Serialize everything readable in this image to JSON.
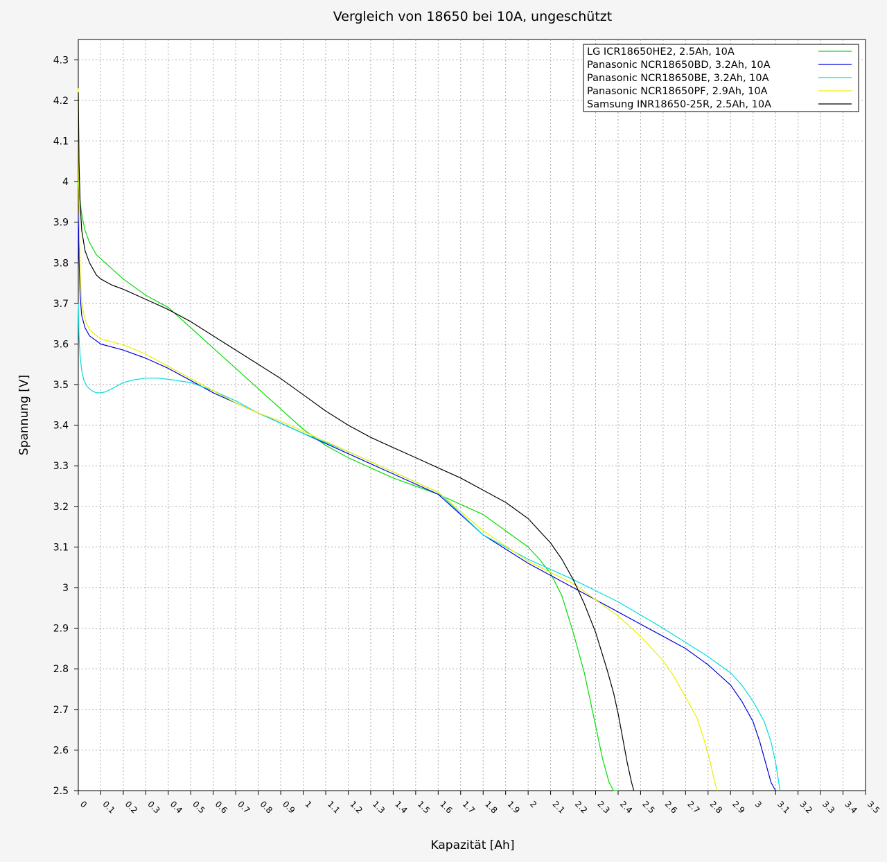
{
  "chart_data": {
    "type": "line",
    "title": "Vergleich von 18650 bei 10A, ungeschützt",
    "xlabel": "Kapazität [Ah]",
    "ylabel": "Spannung [V]",
    "xlim": [
      0,
      3.5
    ],
    "ylim": [
      2.5,
      4.35
    ],
    "grid": true,
    "legend_position": "top-right",
    "x_ticks": [
      "0",
      "0.1",
      "0.2",
      "0.3",
      "0.4",
      "0.5",
      "0.6",
      "0.7",
      "0.8",
      "0.9",
      "1",
      "1.1",
      "1.2",
      "1.3",
      "1.4",
      "1.5",
      "1.6",
      "1.7",
      "1.8",
      "1.9",
      "2",
      "2.1",
      "2.2",
      "2.3",
      "2.4",
      "2.5",
      "2.6",
      "2.7",
      "2.8",
      "2.9",
      "3",
      "3.1",
      "3.2",
      "3.3",
      "3.4",
      "3.5"
    ],
    "y_ticks": [
      "2.5",
      "2.6",
      "2.7",
      "2.8",
      "2.9",
      "3",
      "3.1",
      "3.2",
      "3.3",
      "3.4",
      "3.5",
      "3.6",
      "3.7",
      "3.8",
      "3.9",
      "4",
      "4.1",
      "4.2",
      "4.3"
    ],
    "series": [
      {
        "name": "LG ICR18650HE2, 2.5Ah, 10A",
        "color": "#00dd00",
        "x": [
          0,
          0.003,
          0.008,
          0.015,
          0.03,
          0.05,
          0.08,
          0.1,
          0.15,
          0.2,
          0.3,
          0.4,
          0.5,
          0.6,
          0.7,
          0.8,
          0.9,
          1.0,
          1.1,
          1.2,
          1.3,
          1.4,
          1.5,
          1.6,
          1.7,
          1.8,
          1.9,
          2.0,
          2.05,
          2.1,
          2.15,
          2.2,
          2.25,
          2.3,
          2.33,
          2.36,
          2.38,
          2.4
        ],
        "y": [
          4.0,
          3.98,
          3.95,
          3.92,
          3.88,
          3.85,
          3.82,
          3.81,
          3.785,
          3.76,
          3.72,
          3.69,
          3.64,
          3.59,
          3.54,
          3.49,
          3.44,
          3.39,
          3.35,
          3.32,
          3.295,
          3.27,
          3.25,
          3.23,
          3.205,
          3.18,
          3.14,
          3.1,
          3.07,
          3.035,
          2.98,
          2.89,
          2.79,
          2.66,
          2.58,
          2.52,
          2.5,
          2.5
        ]
      },
      {
        "name": "Panasonic NCR18650BD, 3.2Ah, 10A",
        "color": "#0000dd",
        "x": [
          0,
          0.003,
          0.008,
          0.015,
          0.03,
          0.05,
          0.1,
          0.2,
          0.3,
          0.4,
          0.5,
          0.6,
          0.7,
          0.8,
          0.9,
          1.0,
          1.2,
          1.4,
          1.6,
          1.8,
          2.0,
          2.2,
          2.4,
          2.6,
          2.7,
          2.8,
          2.9,
          2.95,
          3.0,
          3.03,
          3.06,
          3.08,
          3.1
        ],
        "y": [
          3.92,
          3.82,
          3.72,
          3.67,
          3.64,
          3.62,
          3.6,
          3.585,
          3.565,
          3.54,
          3.51,
          3.48,
          3.455,
          3.43,
          3.405,
          3.38,
          3.33,
          3.28,
          3.23,
          3.13,
          3.06,
          3.0,
          2.94,
          2.88,
          2.85,
          2.81,
          2.76,
          2.72,
          2.67,
          2.62,
          2.56,
          2.52,
          2.5
        ]
      },
      {
        "name": "Panasonic NCR18650BE, 3.2Ah, 10A",
        "color": "#00dddd",
        "x": [
          0,
          0.003,
          0.008,
          0.015,
          0.025,
          0.04,
          0.06,
          0.08,
          0.1,
          0.12,
          0.15,
          0.2,
          0.25,
          0.3,
          0.35,
          0.4,
          0.5,
          0.6,
          0.7,
          0.8,
          0.9,
          1.0,
          1.2,
          1.4,
          1.6,
          1.8,
          2.0,
          2.2,
          2.4,
          2.6,
          2.8,
          2.9,
          2.95,
          3.0,
          3.05,
          3.08,
          3.1,
          3.12
        ],
        "y": [
          3.7,
          3.62,
          3.57,
          3.535,
          3.51,
          3.495,
          3.485,
          3.48,
          3.48,
          3.482,
          3.49,
          3.505,
          3.512,
          3.516,
          3.516,
          3.513,
          3.505,
          3.485,
          3.46,
          3.43,
          3.405,
          3.38,
          3.335,
          3.285,
          3.235,
          3.13,
          3.07,
          3.02,
          2.965,
          2.9,
          2.83,
          2.79,
          2.76,
          2.72,
          2.67,
          2.62,
          2.57,
          2.5
        ]
      },
      {
        "name": "Panasonic NCR18650PF, 2.9Ah, 10A",
        "color": "#eeee00",
        "x": [
          0,
          0.003,
          0.008,
          0.015,
          0.03,
          0.05,
          0.1,
          0.2,
          0.3,
          0.4,
          0.5,
          0.6,
          0.7,
          0.8,
          0.9,
          1.0,
          1.2,
          1.4,
          1.6,
          1.8,
          2.0,
          2.2,
          2.4,
          2.5,
          2.6,
          2.65,
          2.7,
          2.75,
          2.78,
          2.81,
          2.83,
          2.84
        ],
        "y": [
          4.23,
          3.95,
          3.78,
          3.7,
          3.66,
          3.635,
          3.612,
          3.598,
          3.575,
          3.545,
          3.515,
          3.485,
          3.455,
          3.43,
          3.41,
          3.385,
          3.335,
          3.285,
          3.235,
          3.14,
          3.065,
          3.01,
          2.93,
          2.88,
          2.82,
          2.78,
          2.73,
          2.68,
          2.63,
          2.57,
          2.52,
          2.5
        ]
      },
      {
        "name": "Samsung INR18650-25R, 2.5Ah, 10A",
        "color": "#000000",
        "x": [
          0,
          0.003,
          0.008,
          0.015,
          0.03,
          0.05,
          0.08,
          0.1,
          0.15,
          0.2,
          0.3,
          0.4,
          0.5,
          0.6,
          0.7,
          0.8,
          0.9,
          1.0,
          1.1,
          1.2,
          1.3,
          1.4,
          1.5,
          1.6,
          1.7,
          1.8,
          1.9,
          2.0,
          2.1,
          2.15,
          2.2,
          2.25,
          2.3,
          2.35,
          2.38,
          2.4,
          2.42,
          2.44,
          2.46,
          2.47
        ],
        "y": [
          4.22,
          4.05,
          3.95,
          3.88,
          3.83,
          3.8,
          3.77,
          3.76,
          3.745,
          3.735,
          3.71,
          3.685,
          3.655,
          3.62,
          3.585,
          3.55,
          3.515,
          3.475,
          3.435,
          3.4,
          3.37,
          3.345,
          3.32,
          3.295,
          3.27,
          3.24,
          3.21,
          3.17,
          3.11,
          3.07,
          3.02,
          2.96,
          2.89,
          2.8,
          2.74,
          2.69,
          2.63,
          2.57,
          2.52,
          2.5
        ]
      }
    ]
  }
}
